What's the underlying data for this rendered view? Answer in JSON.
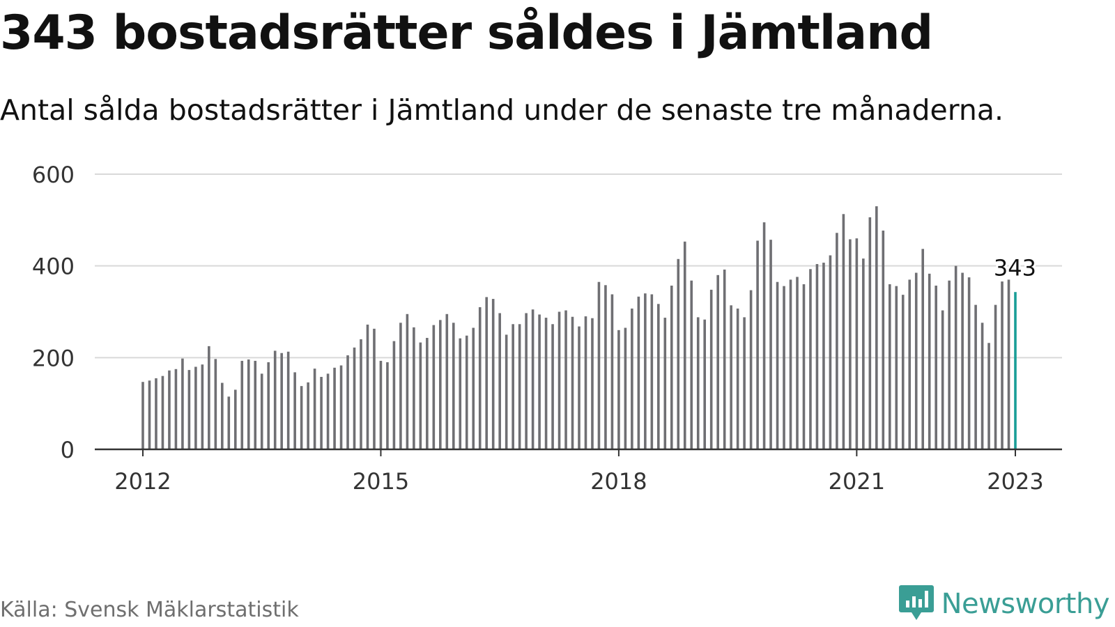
{
  "header": {
    "title": "343 bostadsrätter såldes i Jämtland",
    "subtitle": "Antal sålda bostadsrätter i Jämtland under de senaste tre månaderna."
  },
  "footer": {
    "source": "Källa: Svensk Mäklarstatistik",
    "brand": "Newsworthy",
    "brand_icon": "bar-chart-speech-bubble-icon"
  },
  "colors": {
    "bar": "#6f6f73",
    "highlight": "#1a9e97",
    "grid": "#d9d9d9",
    "axis": "#333333",
    "brand": "#3a9e95"
  },
  "chart_data": {
    "type": "bar",
    "title": "343 bostadsrätter såldes i Jämtland",
    "subtitle": "Antal sålda bostadsrätter i Jämtland under de senaste tre månaderna.",
    "xlabel": "",
    "ylabel": "",
    "x_start": "2012-01",
    "x_end": "2023-01",
    "x_ticks": [
      "2012",
      "2015",
      "2018",
      "2021",
      "2023"
    ],
    "y_ticks": [
      0,
      200,
      400,
      600
    ],
    "ylim": [
      0,
      600
    ],
    "grid": true,
    "highlight_label": "343",
    "values": [
      147,
      150,
      155,
      160,
      172,
      175,
      198,
      173,
      180,
      185,
      225,
      197,
      145,
      115,
      130,
      193,
      196,
      193,
      165,
      190,
      215,
      210,
      213,
      168,
      138,
      146,
      176,
      158,
      165,
      178,
      183,
      205,
      222,
      240,
      272,
      263,
      193,
      190,
      236,
      276,
      295,
      266,
      233,
      243,
      271,
      282,
      295,
      276,
      242,
      248,
      265,
      310,
      332,
      328,
      297,
      250,
      273,
      273,
      297,
      305,
      294,
      287,
      273,
      300,
      303,
      289,
      268,
      290,
      286,
      365,
      358,
      338,
      260,
      265,
      307,
      333,
      340,
      338,
      317,
      287,
      357,
      415,
      453,
      368,
      288,
      283,
      348,
      380,
      392,
      314,
      307,
      288,
      347,
      455,
      495,
      457,
      365,
      356,
      370,
      376,
      360,
      393,
      404,
      407,
      423,
      472,
      513,
      458,
      460,
      416,
      506,
      530,
      477,
      360,
      356,
      337,
      370,
      385,
      437,
      383,
      357,
      303,
      368,
      400,
      385,
      375,
      315,
      276,
      232,
      315,
      366,
      370,
      343
    ]
  }
}
